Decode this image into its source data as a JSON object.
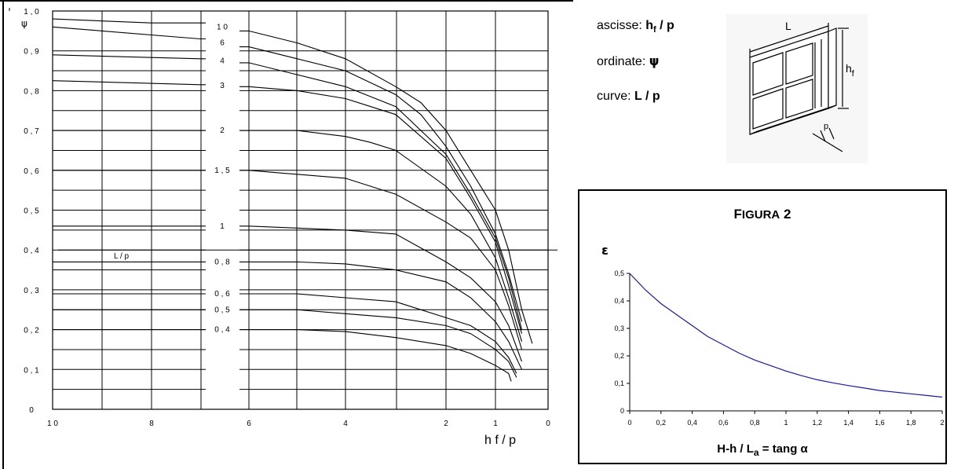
{
  "main_chart": {
    "y_tick_labels": [
      "1 , 0",
      "0 , 9",
      "0 , 8",
      "0 , 7",
      "0 , 6",
      "0 , 5",
      "0 , 4",
      "0 , 3",
      "0 , 2",
      "0 , 1",
      "0"
    ],
    "x_tick_labels": [
      "1 0",
      "8",
      "6",
      "4",
      "2",
      "1",
      "0"
    ],
    "y_axis_label": "ψ",
    "x_axis_label": "h  f / p",
    "curve_labels": [
      "1 0",
      "6",
      "4",
      "3",
      "2",
      "1 , 5",
      "1",
      "0 , 8",
      "0 , 6",
      "0 , 5",
      "0 , 4"
    ],
    "inner_label": "L / p"
  },
  "legend": {
    "ascisse_prefix": "ascisse: ",
    "ascisse_value": "h",
    "ascisse_sub": "f",
    "ascisse_tail": " / p",
    "ordinate_prefix": "ordinate: ",
    "ordinate_value": "ψ",
    "curve_prefix": "curve: ",
    "curve_value": "L / p"
  },
  "diagram": {
    "label_L": "L",
    "label_hf": "h",
    "label_hf_sub": "f",
    "label_p": "p"
  },
  "figura2": {
    "title_first": "F",
    "title_rest": "IGURA",
    "title_num": " 2",
    "y_label": "ε",
    "x_label_main": "H-h / L",
    "x_label_sub": "a",
    "x_label_tail": " = tang α",
    "y_tick_labels": [
      "0,5",
      "0,4",
      "0,3",
      "0,2",
      "0,1",
      "0"
    ],
    "x_tick_labels": [
      "0",
      "0,2",
      "0,4",
      "0,6",
      "0,8",
      "1",
      "1,2",
      "1,4",
      "1,6",
      "1,8",
      "2"
    ]
  },
  "chart_data": [
    {
      "type": "line",
      "x_axis_label": "h f / p",
      "y_axis_label": "ψ",
      "x_ticks": [
        10,
        8,
        6,
        4,
        2,
        1,
        0
      ],
      "ylim": [
        0,
        1.0
      ],
      "series": [
        {
          "name": "1 0",
          "values": [
            [
              10,
              0.98
            ],
            [
              8,
              0.97
            ],
            [
              6,
              0.95
            ],
            [
              5,
              0.92
            ],
            [
              4,
              0.88
            ],
            [
              3,
              0.81
            ],
            [
              2.5,
              0.77
            ],
            [
              2,
              0.7
            ],
            [
              1.5,
              0.6
            ],
            [
              1,
              0.5
            ],
            [
              0.75,
              0.4
            ],
            [
              0.5,
              0.25
            ],
            [
              0.3,
              0.165
            ]
          ]
        },
        {
          "name": "6",
          "values": [
            [
              10,
              0.96
            ],
            [
              7,
              0.93
            ],
            [
              6,
              0.91
            ],
            [
              5,
              0.88
            ],
            [
              4,
              0.85
            ],
            [
              3,
              0.79
            ],
            [
              2.5,
              0.74
            ],
            [
              2,
              0.66
            ],
            [
              1.5,
              0.56
            ],
            [
              1,
              0.44
            ],
            [
              0.75,
              0.34
            ],
            [
              0.5,
              0.22
            ]
          ]
        },
        {
          "name": "4",
          "values": [
            [
              10,
              0.89
            ],
            [
              7,
              0.88
            ],
            [
              6,
              0.87
            ],
            [
              5,
              0.84
            ],
            [
              4,
              0.81
            ],
            [
              3,
              0.76
            ],
            [
              2,
              0.64
            ],
            [
              1.5,
              0.54
            ],
            [
              1,
              0.43
            ],
            [
              0.75,
              0.33
            ],
            [
              0.5,
              0.2
            ]
          ]
        },
        {
          "name": "3",
          "values": [
            [
              10,
              0.825
            ],
            [
              7,
              0.815
            ],
            [
              6,
              0.81
            ],
            [
              5,
              0.8
            ],
            [
              4,
              0.78
            ],
            [
              3,
              0.74
            ],
            [
              2,
              0.63
            ],
            [
              1.5,
              0.53
            ],
            [
              1,
              0.42
            ],
            [
              0.75,
              0.31
            ],
            [
              0.5,
              0.19
            ]
          ]
        },
        {
          "name": "2",
          "values": [
            [
              10,
              0.7
            ],
            [
              7,
              0.7
            ],
            [
              6,
              0.7
            ],
            [
              5,
              0.7
            ],
            [
              4,
              0.685
            ],
            [
              3.5,
              0.67
            ],
            [
              3,
              0.65
            ],
            [
              2,
              0.56
            ],
            [
              1.5,
              0.49
            ],
            [
              1,
              0.38
            ],
            [
              0.75,
              0.28
            ],
            [
              0.5,
              0.17
            ]
          ]
        },
        {
          "name": "1 , 5",
          "values": [
            [
              10,
              0.6
            ],
            [
              7,
              0.6
            ],
            [
              6,
              0.6
            ],
            [
              5,
              0.59
            ],
            [
              4,
              0.58
            ],
            [
              3.5,
              0.56
            ],
            [
              3,
              0.54
            ],
            [
              2,
              0.47
            ],
            [
              1.5,
              0.43
            ],
            [
              1,
              0.35
            ],
            [
              0.75,
              0.26
            ],
            [
              0.5,
              0.15
            ]
          ]
        },
        {
          "name": "1",
          "values": [
            [
              10,
              0.46
            ],
            [
              7,
              0.46
            ],
            [
              6,
              0.46
            ],
            [
              5,
              0.455
            ],
            [
              4,
              0.45
            ],
            [
              3,
              0.44
            ],
            [
              2,
              0.37
            ],
            [
              1.5,
              0.33
            ],
            [
              1,
              0.27
            ],
            [
              0.75,
              0.21
            ],
            [
              0.5,
              0.12
            ]
          ]
        },
        {
          "name": "0 , 8",
          "values": [
            [
              10,
              0.37
            ],
            [
              7,
              0.37
            ],
            [
              6,
              0.37
            ],
            [
              5,
              0.37
            ],
            [
              4,
              0.365
            ],
            [
              3,
              0.35
            ],
            [
              2,
              0.32
            ],
            [
              1.5,
              0.28
            ],
            [
              1,
              0.22
            ],
            [
              0.75,
              0.17
            ],
            [
              0.5,
              0.1
            ]
          ]
        },
        {
          "name": "0 , 6",
          "values": [
            [
              10,
              0.29
            ],
            [
              7,
              0.29
            ],
            [
              6,
              0.29
            ],
            [
              5,
              0.29
            ],
            [
              4,
              0.28
            ],
            [
              3,
              0.27
            ],
            [
              2,
              0.23
            ],
            [
              1.5,
              0.21
            ],
            [
              1,
              0.17
            ],
            [
              0.75,
              0.13
            ],
            [
              0.6,
              0.09
            ]
          ]
        },
        {
          "name": "0 , 5",
          "values": [
            [
              10,
              0.25
            ],
            [
              7,
              0.25
            ],
            [
              6,
              0.25
            ],
            [
              5,
              0.25
            ],
            [
              4,
              0.24
            ],
            [
              3,
              0.23
            ],
            [
              2,
              0.21
            ],
            [
              1.5,
              0.19
            ],
            [
              1,
              0.15
            ],
            [
              0.75,
              0.12
            ],
            [
              0.6,
              0.08
            ]
          ]
        },
        {
          "name": "0 , 4",
          "values": [
            [
              10,
              0.2
            ],
            [
              7,
              0.2
            ],
            [
              6,
              0.2
            ],
            [
              5,
              0.2
            ],
            [
              4,
              0.195
            ],
            [
              3,
              0.18
            ],
            [
              2,
              0.16
            ],
            [
              1.5,
              0.14
            ],
            [
              1,
              0.11
            ],
            [
              0.75,
              0.09
            ],
            [
              0.7,
              0.07
            ]
          ]
        }
      ]
    },
    {
      "type": "line",
      "title": "FIGURA 2",
      "xlabel": "H-h / La = tang α",
      "ylabel": "ε",
      "xlim": [
        0,
        2
      ],
      "ylim": [
        0,
        0.5
      ],
      "x": [
        0,
        0.1,
        0.2,
        0.3,
        0.4,
        0.5,
        0.6,
        0.7,
        0.8,
        0.9,
        1.0,
        1.1,
        1.2,
        1.3,
        1.4,
        1.5,
        1.6,
        1.7,
        1.8,
        1.9,
        2.0
      ],
      "series": [
        {
          "values": [
            0.5,
            0.44,
            0.39,
            0.35,
            0.31,
            0.27,
            0.24,
            0.21,
            0.185,
            0.165,
            0.145,
            0.128,
            0.113,
            0.102,
            0.092,
            0.083,
            0.074,
            0.068,
            0.062,
            0.056,
            0.05
          ],
          "color": "#1a1a9c"
        }
      ]
    }
  ]
}
